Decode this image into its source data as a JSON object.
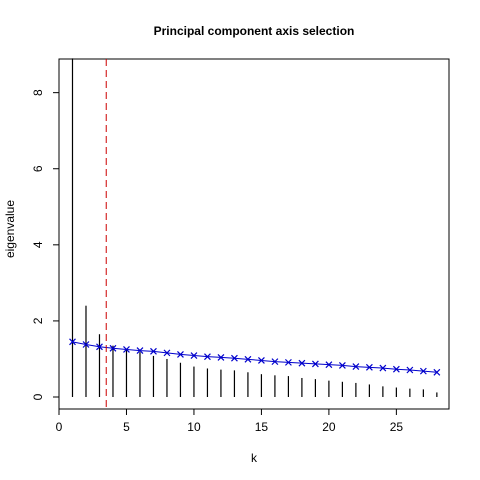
{
  "chart_data": {
    "type": "bar",
    "title": "Principal component axis selection",
    "xlabel": "k",
    "ylabel": "eigenvalue",
    "xlim": [
      0,
      28.9
    ],
    "ylim": [
      0,
      9.2
    ],
    "x_ticks": [
      0,
      5,
      10,
      15,
      20,
      25
    ],
    "y_ticks": [
      0,
      2,
      4,
      6,
      8
    ],
    "selected_k": 3.5,
    "colors": {
      "bars": "#000000",
      "reference_line": "#0000cc",
      "selection_line": "#cc0000"
    },
    "series": [
      {
        "type": "bar",
        "x": [
          1,
          2,
          3,
          4,
          5,
          6,
          7,
          8,
          9,
          10,
          11,
          12,
          13,
          14,
          15,
          16,
          17,
          18,
          19,
          20,
          21,
          22,
          23,
          24,
          25,
          26,
          27,
          28
        ],
        "values": [
          8.9,
          2.4,
          1.65,
          1.35,
          1.25,
          1.18,
          1.08,
          1.0,
          0.9,
          0.8,
          0.75,
          0.72,
          0.7,
          0.65,
          0.6,
          0.57,
          0.55,
          0.5,
          0.47,
          0.43,
          0.4,
          0.37,
          0.33,
          0.28,
          0.25,
          0.22,
          0.2,
          0.12
        ]
      },
      {
        "type": "line",
        "marker": "x",
        "x": [
          1,
          2,
          3,
          4,
          5,
          6,
          7,
          8,
          9,
          10,
          11,
          12,
          13,
          14,
          15,
          16,
          17,
          18,
          19,
          20,
          21,
          22,
          23,
          24,
          25,
          26,
          27,
          28
        ],
        "values": [
          1.45,
          1.38,
          1.32,
          1.28,
          1.25,
          1.22,
          1.2,
          1.16,
          1.12,
          1.09,
          1.06,
          1.04,
          1.02,
          0.99,
          0.96,
          0.93,
          0.91,
          0.89,
          0.87,
          0.85,
          0.83,
          0.8,
          0.78,
          0.76,
          0.73,
          0.71,
          0.68,
          0.65
        ]
      }
    ]
  }
}
